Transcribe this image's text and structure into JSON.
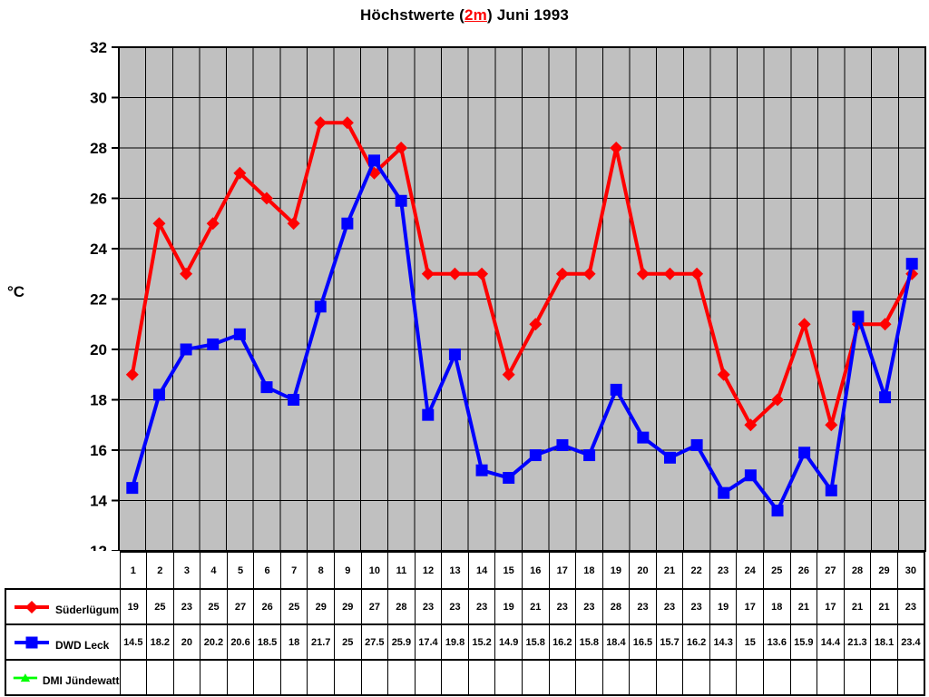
{
  "title": {
    "prefix": "Höchstwerte (",
    "highlight": "2m",
    "suffix": ") Juni 1993"
  },
  "y_axis_unit": "°C",
  "chart_data": {
    "type": "line",
    "title": "Höchstwerte (2m) Juni 1993",
    "xlabel": "",
    "ylabel": "°C",
    "ylim": [
      12,
      32
    ],
    "ytick_step": 2,
    "grid": true,
    "plot_background": "#c0c0c0",
    "grid_color": "#000000",
    "legend_position": "table-left",
    "categories": [
      1,
      2,
      3,
      4,
      5,
      6,
      7,
      8,
      9,
      10,
      11,
      12,
      13,
      14,
      15,
      16,
      17,
      18,
      19,
      20,
      21,
      22,
      23,
      24,
      25,
      26,
      27,
      28,
      29,
      30
    ],
    "series": [
      {
        "name": "Süderlügum",
        "color": "#ff0000",
        "marker": "diamond",
        "values": [
          19,
          25,
          23,
          25,
          27,
          26,
          25,
          29,
          29,
          27,
          28,
          23,
          23,
          23,
          19,
          21,
          23,
          23,
          28,
          23,
          23,
          23,
          19,
          17,
          18,
          21,
          17,
          21,
          21,
          23
        ]
      },
      {
        "name": "DWD Leck",
        "color": "#0000ff",
        "marker": "square",
        "values": [
          14.5,
          18.2,
          20,
          20.2,
          20.6,
          18.5,
          18,
          21.7,
          25,
          27.5,
          25.9,
          17.4,
          19.8,
          15.2,
          14.9,
          15.8,
          16.2,
          15.8,
          18.4,
          16.5,
          15.7,
          16.2,
          14.3,
          15,
          13.6,
          15.9,
          14.4,
          21.3,
          18.1,
          23.4
        ]
      },
      {
        "name": "DMI Jündewatt",
        "color": "#00ff00",
        "marker": "triangle",
        "values": []
      }
    ]
  }
}
